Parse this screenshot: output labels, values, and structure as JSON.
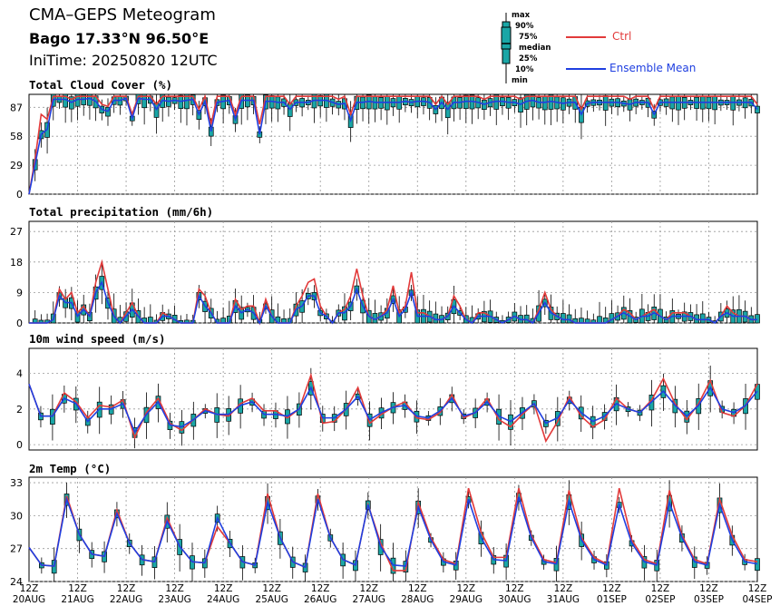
{
  "header": {
    "title": "CMA–GEPS Meteogram",
    "location": "Bago 17.33°N 96.50°E",
    "init_time": "IniTime: 20250820 12UTC"
  },
  "legend": {
    "box_labels": [
      "max",
      "90%",
      "75%",
      "median",
      "25%",
      "10%",
      "min"
    ],
    "ctrl_label": "Ctrl",
    "mean_label": "Ensemble Mean",
    "ctrl_color": "#e23a3a",
    "mean_color": "#1f3fe0",
    "box_color": "#1aa6a6"
  },
  "x_axis": {
    "hours": [
      "12Z",
      "12Z",
      "12Z",
      "12Z",
      "12Z",
      "12Z",
      "12Z",
      "12Z",
      "12Z",
      "12Z",
      "12Z",
      "12Z",
      "12Z",
      "12Z",
      "12Z"
    ],
    "dates": [
      "20AUG",
      "21AUG",
      "22AUG",
      "23AUG",
      "24AUG",
      "25AUG",
      "26AUG",
      "27AUG",
      "28AUG",
      "29AUG",
      "30AUG",
      "31AUG",
      "01SEP",
      "02SEP",
      "03SEP",
      "04SEP"
    ],
    "hour_last": "12Z"
  },
  "chart_data": [
    {
      "type": "line",
      "title": "Total Cloud Cover (%)",
      "ylim": [
        0,
        100
      ],
      "yticks": [
        0,
        29,
        58,
        87
      ],
      "grid": true,
      "x_step_hours": 6,
      "series": [
        {
          "name": "Ctrl",
          "values": [
            0,
            35,
            80,
            75,
            98,
            98,
            98,
            95,
            98,
            98,
            98,
            98,
            90,
            88,
            98,
            98,
            98,
            80,
            98,
            98,
            98,
            90,
            98,
            98,
            98,
            98,
            98,
            98,
            85,
            98,
            70,
            98,
            98,
            98,
            80,
            98,
            98,
            98,
            70,
            98,
            98,
            98,
            98,
            90,
            98,
            98,
            98,
            98,
            98,
            98,
            98,
            95,
            98,
            80,
            98,
            98,
            98,
            98,
            98,
            98,
            98,
            98,
            98,
            98,
            98,
            98,
            98,
            90,
            98,
            90,
            98,
            98,
            98,
            98,
            98,
            95,
            98,
            98,
            98,
            98,
            98,
            95,
            98,
            98,
            98,
            98,
            98,
            98,
            98,
            98,
            98,
            85,
            98,
            98,
            98,
            98,
            98,
            98,
            98,
            95,
            98,
            98,
            98,
            85,
            98,
            98,
            98,
            98,
            98,
            98,
            98,
            98,
            98,
            98,
            98,
            98,
            98,
            98,
            98,
            98,
            90
          ]
        },
        {
          "name": "Ensemble Mean",
          "values": [
            0,
            30,
            60,
            65,
            95,
            95,
            95,
            92,
            95,
            95,
            96,
            93,
            85,
            83,
            94,
            94,
            96,
            76,
            96,
            95,
            95,
            85,
            94,
            93,
            94,
            93,
            94,
            95,
            80,
            93,
            63,
            92,
            93,
            94,
            75,
            94,
            94,
            94,
            60,
            93,
            93,
            92,
            92,
            85,
            92,
            92,
            92,
            94,
            94,
            94,
            92,
            90,
            91,
            74,
            92,
            92,
            93,
            92,
            92,
            92,
            92,
            92,
            93,
            92,
            93,
            93,
            92,
            85,
            92,
            85,
            92,
            92,
            93,
            93,
            92,
            90,
            92,
            93,
            93,
            92,
            92,
            90,
            93,
            94,
            92,
            92,
            93,
            92,
            91,
            92,
            92,
            80,
            91,
            92,
            92,
            92,
            92,
            92,
            91,
            90,
            92,
            92,
            92,
            80,
            92,
            92,
            92,
            92,
            92,
            92,
            92,
            92,
            92,
            92,
            92,
            92,
            92,
            92,
            92,
            92,
            85
          ]
        }
      ],
      "boxes": [
        {
          "i": 0,
          "min": 0,
          "p10": 2,
          "p25": 4,
          "median": 6,
          "p75": 8,
          "p90": 10,
          "max": 12
        }
      ]
    },
    {
      "type": "line",
      "title": "Total precipitation (mm/6h)",
      "ylim": [
        0,
        30
      ],
      "yticks": [
        0,
        9,
        18,
        27
      ],
      "grid": true,
      "series": [
        {
          "name": "Ctrl",
          "values": [
            0,
            0,
            0,
            0,
            1,
            10,
            7,
            9,
            3,
            5,
            2,
            12,
            18,
            10,
            2,
            0,
            3,
            6,
            2,
            0,
            0,
            0,
            3,
            2,
            1,
            0,
            0,
            0,
            10,
            8,
            3,
            0,
            0,
            0,
            7,
            4,
            5,
            5,
            0,
            7,
            2,
            0,
            0,
            0,
            5,
            8,
            12,
            13,
            5,
            2,
            0,
            3,
            4,
            8,
            16,
            8,
            2,
            1,
            2,
            4,
            11,
            3,
            5,
            15,
            3,
            3,
            2,
            1,
            1,
            2,
            8,
            5,
            1,
            0,
            3,
            3,
            2,
            1,
            0,
            1,
            2,
            1,
            1,
            0,
            4,
            9,
            4,
            2,
            1,
            1,
            0,
            0,
            0,
            0,
            0,
            0,
            1,
            2,
            4,
            3,
            1,
            2,
            3,
            4,
            2,
            1,
            3,
            3,
            3,
            2,
            1,
            1,
            1,
            0,
            2,
            5,
            3,
            2,
            2,
            1,
            1
          ]
        },
        {
          "name": "Ensemble Mean",
          "values": [
            0,
            0,
            0,
            0,
            1,
            8,
            6,
            6,
            2,
            4,
            2,
            9,
            12,
            6,
            2,
            0,
            2,
            4,
            2,
            0,
            0,
            0,
            2,
            2,
            1,
            0,
            0,
            0,
            8,
            5,
            3,
            0,
            0,
            0,
            5,
            3,
            4,
            3,
            0,
            5,
            2,
            0,
            0,
            0,
            4,
            5,
            8,
            8,
            3,
            2,
            0,
            3,
            3,
            5,
            10,
            5,
            2,
            1,
            2,
            3,
            7,
            2,
            4,
            9,
            2,
            2,
            2,
            1,
            1,
            2,
            5,
            3,
            1,
            0,
            2,
            2,
            2,
            1,
            0,
            1,
            2,
            1,
            1,
            0,
            3,
            6,
            3,
            2,
            1,
            1,
            0,
            0,
            0,
            0,
            0,
            0,
            1,
            2,
            3,
            2,
            1,
            2,
            2,
            3,
            2,
            1,
            2,
            2,
            2,
            2,
            1,
            1,
            1,
            0,
            2,
            3,
            2,
            2,
            2,
            1,
            1
          ]
        }
      ]
    },
    {
      "type": "line",
      "title": "10m wind speed (m/s)",
      "ylim": [
        -0.3,
        5.4
      ],
      "yticks": [
        0,
        2,
        4
      ],
      "grid": true,
      "series": [
        {
          "name": "Ctrl",
          "values": [
            3.4,
            1.6,
            1.6,
            2.9,
            2.4,
            1.5,
            2.2,
            2.1,
            2.5,
            0.4,
            1.8,
            2.6,
            1.2,
            0.8,
            1.4,
            2.0,
            1.7,
            1.6,
            2.3,
            2.6,
            1.9,
            1.9,
            1.5,
            2.0,
            3.9,
            1.2,
            1.3,
            2.0,
            3.2,
            1.2,
            1.7,
            2.1,
            2.4,
            1.5,
            1.4,
            1.8,
            2.8,
            1.5,
            1.8,
            2.6,
            1.4,
            1.0,
            1.7,
            2.3,
            0.2,
            1.3,
            2.7,
            1.6,
            1.0,
            1.4,
            2.6,
            2.0,
            1.8,
            2.5,
            3.7,
            2.3,
            1.4,
            2.3,
            3.6,
            1.8,
            1.6,
            2.2,
            3.4
          ]
        },
        {
          "name": "Ensemble Mean",
          "values": [
            3.4,
            1.6,
            1.6,
            2.6,
            2.3,
            1.3,
            2.0,
            2.0,
            2.3,
            0.7,
            1.7,
            2.4,
            1.1,
            1.0,
            1.4,
            1.9,
            1.7,
            1.7,
            2.2,
            2.4,
            1.7,
            1.7,
            1.6,
            2.0,
            3.2,
            1.5,
            1.5,
            2.0,
            2.7,
            1.4,
            1.8,
            2.1,
            2.2,
            1.6,
            1.5,
            1.9,
            2.6,
            1.6,
            1.8,
            2.4,
            1.6,
            1.3,
            1.8,
            2.3,
            1.2,
            1.5,
            2.5,
            1.8,
            1.3,
            1.6,
            2.3,
            2.0,
            1.8,
            2.4,
            3.0,
            2.2,
            1.6,
            2.2,
            3.2,
            2.0,
            1.8,
            2.2,
            3.0
          ]
        }
      ]
    },
    {
      "type": "line",
      "title": "2m Temp (°C)",
      "ylim": [
        24,
        33.5
      ],
      "yticks": [
        24,
        27,
        30,
        33
      ],
      "grid": true,
      "series": [
        {
          "name": "Ctrl",
          "values": [
            27.1,
            25.5,
            25.4,
            31.8,
            28.3,
            26.5,
            26.3,
            30.5,
            27.5,
            26.0,
            25.8,
            29.8,
            27.2,
            25.8,
            25.7,
            29.0,
            27.5,
            25.8,
            25.5,
            32.0,
            28.0,
            25.8,
            25.3,
            32.0,
            28.0,
            26.0,
            25.5,
            31.0,
            27.5,
            25.0,
            25.0,
            31.2,
            28.0,
            26.0,
            25.6,
            32.5,
            28.5,
            26.2,
            26.2,
            32.5,
            28.2,
            26.0,
            25.7,
            32.3,
            28.0,
            26.2,
            25.6,
            32.5,
            27.8,
            26.0,
            25.6,
            32.3,
            28.2,
            26.0,
            25.6,
            31.5,
            28.2,
            26.0,
            25.8
          ]
        },
        {
          "name": "Ensemble Mean",
          "values": [
            27.1,
            25.5,
            25.4,
            31.5,
            28.3,
            26.5,
            26.3,
            30.2,
            27.5,
            26.0,
            25.8,
            29.5,
            27.2,
            25.8,
            25.7,
            29.8,
            27.5,
            25.8,
            25.5,
            31.2,
            28.0,
            25.8,
            25.3,
            31.5,
            28.0,
            26.0,
            25.5,
            31.0,
            27.2,
            25.5,
            25.4,
            30.8,
            27.8,
            25.8,
            25.5,
            31.5,
            28.0,
            26.0,
            25.9,
            31.7,
            28.0,
            25.8,
            25.6,
            31.3,
            27.8,
            26.0,
            25.5,
            31.0,
            27.5,
            25.8,
            25.5,
            31.2,
            28.0,
            25.8,
            25.5,
            31.0,
            27.8,
            25.8,
            25.6
          ]
        }
      ]
    }
  ]
}
